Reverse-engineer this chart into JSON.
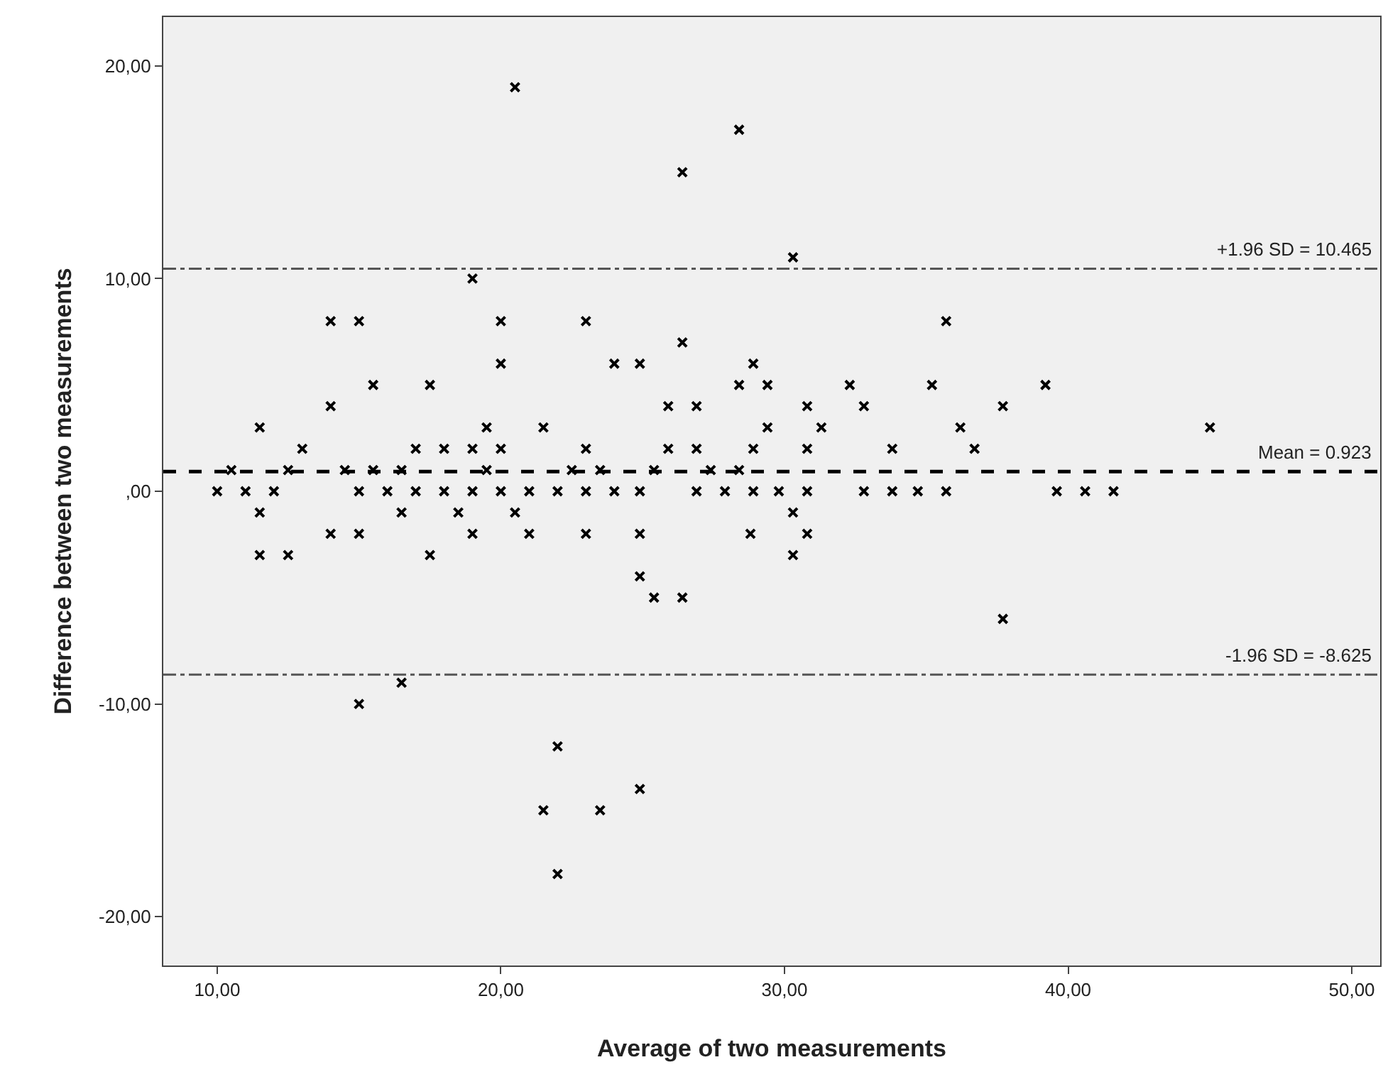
{
  "chart_data": {
    "type": "scatter",
    "xlabel": "Average of two measurements",
    "ylabel": "Difference between two measurements",
    "xlim": [
      8.1,
      51
    ],
    "ylim": [
      -22.3,
      22.3
    ],
    "xticks": [
      {
        "value": 10,
        "label": "10,00"
      },
      {
        "value": 20,
        "label": "20,00"
      },
      {
        "value": 30,
        "label": "30,00"
      },
      {
        "value": 40,
        "label": "40,00"
      },
      {
        "value": 50,
        "label": "50,00"
      }
    ],
    "yticks": [
      {
        "value": -20,
        "label": "-20,00"
      },
      {
        "value": -10,
        "label": "-10,00"
      },
      {
        "value": 0,
        "label": ",00"
      },
      {
        "value": 10,
        "label": "10,00"
      },
      {
        "value": 20,
        "label": "20,00"
      }
    ],
    "grid": false,
    "marker": "cross",
    "series": [
      {
        "color": "#000000",
        "x": [
          20.5,
          28.4,
          26.4,
          30.3,
          19.0,
          14.0,
          15.0,
          23.0,
          20.0,
          35.7,
          26.4,
          20.0,
          24.0,
          24.9,
          28.9,
          15.5,
          17.5,
          28.4,
          29.4,
          32.3,
          35.2,
          39.2,
          14.0,
          25.9,
          26.9,
          30.8,
          32.8,
          37.7,
          11.5,
          19.5,
          21.5,
          29.4,
          31.3,
          36.2,
          45.0,
          13.0,
          17.0,
          18.0,
          19.0,
          20.0,
          23.0,
          25.9,
          26.9,
          28.9,
          30.8,
          33.8,
          36.7,
          10.5,
          12.5,
          14.5,
          15.5,
          16.5,
          19.5,
          22.5,
          23.5,
          25.4,
          27.4,
          28.4,
          10.0,
          11.0,
          12.0,
          15.0,
          16.0,
          17.0,
          18.0,
          19.0,
          20.0,
          21.0,
          22.0,
          23.0,
          24.0,
          24.9,
          26.9,
          27.9,
          28.9,
          29.8,
          30.8,
          32.8,
          33.8,
          34.7,
          35.7,
          39.6,
          40.6,
          41.6,
          11.5,
          16.5,
          18.5,
          20.5,
          30.3,
          14.0,
          15.0,
          19.0,
          21.0,
          23.0,
          24.9,
          28.8,
          30.8,
          11.5,
          12.5,
          17.5,
          30.3,
          24.9,
          25.4,
          26.4,
          37.7,
          16.5,
          15.0,
          22.0,
          24.9,
          21.5,
          23.5,
          22.0
        ],
        "values": [
          19,
          17,
          15,
          11,
          10,
          8,
          8,
          8,
          8,
          8,
          7,
          6,
          6,
          6,
          6,
          5,
          5,
          5,
          5,
          5,
          5,
          5,
          4,
          4,
          4,
          4,
          4,
          4,
          3,
          3,
          3,
          3,
          3,
          3,
          3,
          2,
          2,
          2,
          2,
          2,
          2,
          2,
          2,
          2,
          2,
          2,
          2,
          1,
          1,
          1,
          1,
          1,
          1,
          1,
          1,
          1,
          1,
          1,
          0,
          0,
          0,
          0,
          0,
          0,
          0,
          0,
          0,
          0,
          0,
          0,
          0,
          0,
          0,
          0,
          0,
          0,
          0,
          0,
          0,
          0,
          0,
          0,
          0,
          0,
          -1,
          -1,
          -1,
          -1,
          -1,
          -2,
          -2,
          -2,
          -2,
          -2,
          -2,
          -2,
          -2,
          -3,
          -3,
          -3,
          -3,
          -4,
          -5,
          -5,
          -6,
          -9,
          -10,
          -12,
          -14,
          -15,
          -15,
          -18
        ]
      }
    ],
    "ref_lines": [
      {
        "axis": "y",
        "value": 10.465,
        "label": "+1.96 SD = 10.465",
        "color": "#555555",
        "line_style": "dashdot"
      },
      {
        "axis": "y",
        "value": 0.923,
        "label": "Mean = 0.923",
        "color": "#000000",
        "line_style": "dashed"
      },
      {
        "axis": "y",
        "value": -8.625,
        "label": "-1.96 SD = -8.625",
        "color": "#555555",
        "line_style": "dashdot"
      }
    ]
  }
}
